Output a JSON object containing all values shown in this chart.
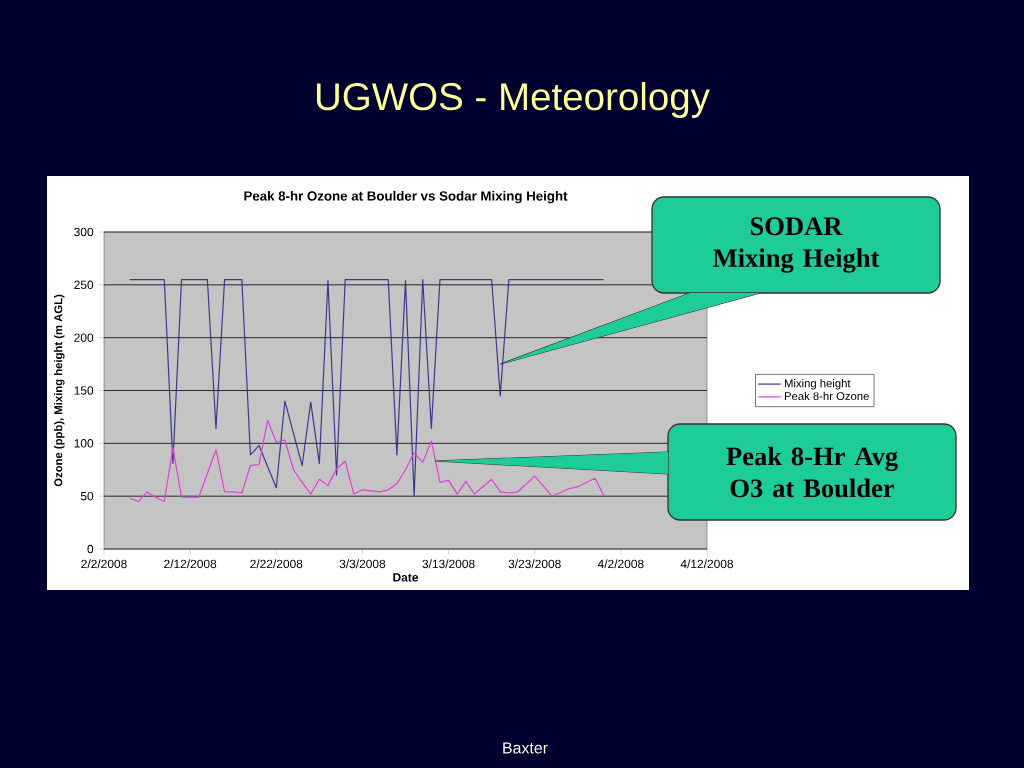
{
  "chart_data": {
    "type": "line",
    "title": "UGWOS - Meteorology",
    "subtitle": "Peak 8-hr Ozone at Boulder vs Sodar Mixing Height",
    "xlabel": "Date",
    "ylabel": "Ozone (ppb), Mixing height (m AGL)",
    "xlim": [
      "2008-02-02",
      "2008-04-12"
    ],
    "xticks": [
      {
        "value": "2008-02-02",
        "label": "2/2/2008"
      },
      {
        "value": "2008-02-12",
        "label": "2/12/2008"
      },
      {
        "value": "2008-02-22",
        "label": "2/22/2008"
      },
      {
        "value": "2008-03-03",
        "label": "3/3/2008"
      },
      {
        "value": "2008-03-13",
        "label": "3/13/2008"
      },
      {
        "value": "2008-03-23",
        "label": "3/23/2008"
      },
      {
        "value": "2008-04-02",
        "label": "4/2/2008"
      },
      {
        "value": "2008-04-12",
        "label": "4/12/2008"
      }
    ],
    "ylim": [
      0,
      300
    ],
    "yticks": [
      0,
      50,
      100,
      150,
      200,
      250,
      300
    ],
    "grid": "y",
    "legend": "right",
    "series": [
      {
        "name": "Mixing height",
        "color": "#3a3a8c",
        "x": [
          "2008-02-05",
          "2008-02-09",
          "2008-02-10",
          "2008-02-11",
          "2008-02-14",
          "2008-02-15",
          "2008-02-16",
          "2008-02-18",
          "2008-02-19",
          "2008-02-20",
          "2008-02-22",
          "2008-02-23",
          "2008-02-25",
          "2008-02-26",
          "2008-02-27",
          "2008-02-28",
          "2008-02-29",
          "2008-03-01",
          "2008-03-06",
          "2008-03-07",
          "2008-03-08",
          "2008-03-09",
          "2008-03-10",
          "2008-03-11",
          "2008-03-12",
          "2008-03-18",
          "2008-03-19",
          "2008-03-20",
          "2008-03-31"
        ],
        "values": [
          255,
          255,
          81,
          255,
          255,
          114,
          255,
          255,
          89,
          98,
          58,
          140,
          79,
          139,
          81,
          254,
          70,
          255,
          255,
          89,
          254,
          50,
          255,
          114,
          255,
          255,
          145,
          255,
          255
        ]
      },
      {
        "name": "Peak 8-hr Ozone",
        "color": "#e040d0",
        "x": [
          "2008-02-05",
          "2008-02-06",
          "2008-02-07",
          "2008-02-08",
          "2008-02-09",
          "2008-02-10",
          "2008-02-11",
          "2008-02-13",
          "2008-02-15",
          "2008-02-16",
          "2008-02-17",
          "2008-02-18",
          "2008-02-19",
          "2008-02-20",
          "2008-02-21",
          "2008-02-22",
          "2008-02-23",
          "2008-02-24",
          "2008-02-25",
          "2008-02-26",
          "2008-02-27",
          "2008-02-28",
          "2008-02-29",
          "2008-03-01",
          "2008-03-02",
          "2008-03-03",
          "2008-03-05",
          "2008-03-06",
          "2008-03-07",
          "2008-03-08",
          "2008-03-09",
          "2008-03-10",
          "2008-03-11",
          "2008-03-12",
          "2008-03-13",
          "2008-03-14",
          "2008-03-15",
          "2008-03-16",
          "2008-03-18",
          "2008-03-19",
          "2008-03-20",
          "2008-03-21",
          "2008-03-23",
          "2008-03-25",
          "2008-03-27",
          "2008-03-28",
          "2008-03-30",
          "2008-03-31"
        ],
        "values": [
          48,
          45,
          54,
          49,
          45,
          96,
          49,
          49,
          94,
          54,
          54,
          53,
          79,
          80,
          122,
          101,
          103,
          75,
          63,
          52,
          66,
          60,
          76,
          83,
          52,
          56,
          54,
          56,
          62,
          75,
          91,
          82,
          102,
          63,
          65,
          52,
          64,
          52,
          66,
          54,
          53,
          54,
          69,
          50,
          57,
          59,
          67,
          51
        ]
      }
    ],
    "annotations": [
      {
        "text": "SODAR Mixing Height",
        "x": "2008-03-19",
        "y": 175
      },
      "Peak 8-Hr Avg O3 at Boulder",
      "Baxter"
    ]
  }
}
